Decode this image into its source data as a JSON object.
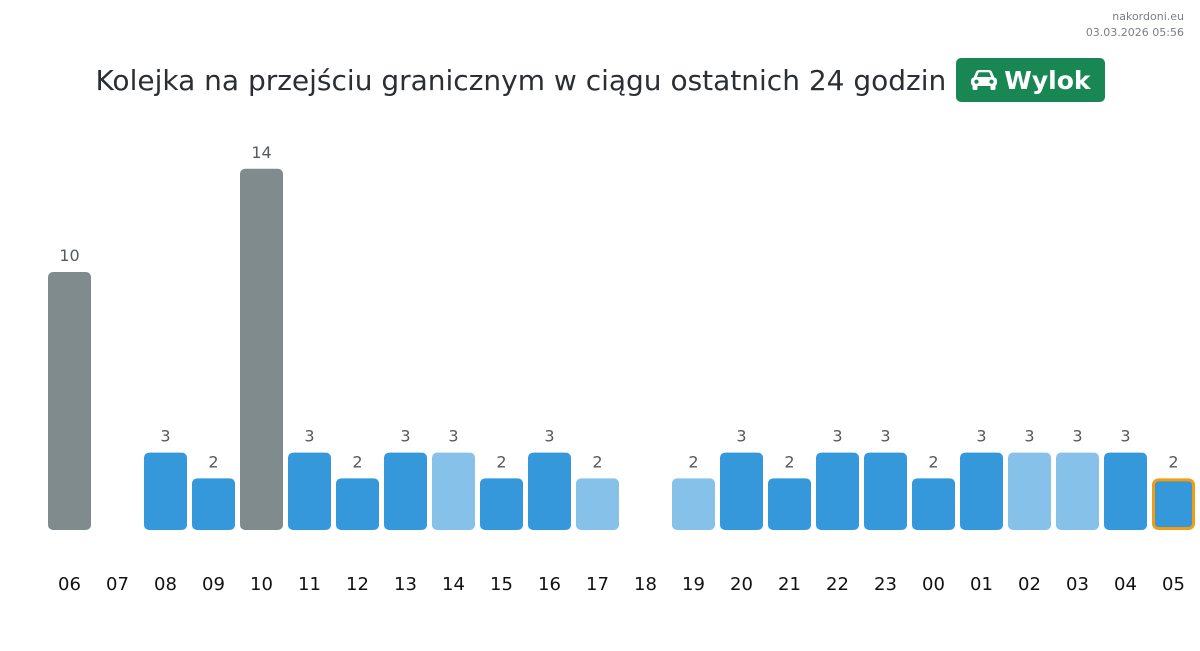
{
  "site": {
    "domain": "nakordoni.eu",
    "datetime": "03.03.2026 05:56"
  },
  "header": {
    "title": "Kolejka na przejściu granicznym w ciągu ostatnich 24 godzin",
    "crossing_badge": {
      "label": "Wylok",
      "icon": "car-icon",
      "color": "#198754"
    }
  },
  "colors": {
    "high": "#7f8b8c",
    "normal": "#3498db",
    "light": "#85c1e9",
    "highlight_border": "#f39c12",
    "value_text": "#555a60",
    "axis_text": "#111111"
  },
  "chart_data": {
    "type": "bar",
    "title": "Kolejka na przejściu granicznym w ciągu ostatnich 24 godzin",
    "xlabel": "",
    "ylabel": "",
    "ylim": [
      0,
      14
    ],
    "grid": false,
    "categories": [
      "06",
      "07",
      "08",
      "09",
      "10",
      "11",
      "12",
      "13",
      "14",
      "15",
      "16",
      "17",
      "18",
      "19",
      "20",
      "21",
      "22",
      "23",
      "00",
      "01",
      "02",
      "03",
      "04",
      "05"
    ],
    "values": [
      10,
      null,
      3,
      2,
      14,
      3,
      2,
      3,
      3,
      2,
      3,
      2,
      null,
      2,
      3,
      2,
      3,
      3,
      2,
      3,
      3,
      3,
      3,
      2
    ],
    "bar_styles": [
      "high",
      "none",
      "normal",
      "normal",
      "high",
      "normal",
      "normal",
      "normal",
      "light",
      "normal",
      "normal",
      "light",
      "none",
      "light",
      "normal",
      "normal",
      "normal",
      "normal",
      "normal",
      "normal",
      "light",
      "light",
      "normal",
      "normal"
    ],
    "highlighted_category": "05"
  }
}
